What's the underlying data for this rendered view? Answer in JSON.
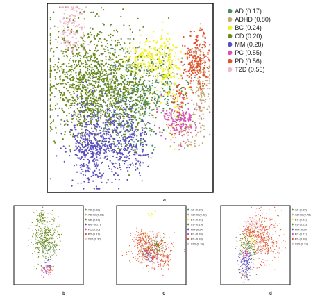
{
  "figure": {
    "main_label": "a",
    "sub_labels": [
      "b",
      "c",
      "d"
    ]
  },
  "chart_data": [
    {
      "type": "scatter",
      "panel": "a",
      "title": "",
      "xlabel": "",
      "ylabel": "",
      "grid": false,
      "legend_position": "right-outside",
      "series": [
        {
          "name": "AD (0.17)",
          "color": "#4d8a5a"
        },
        {
          "name": "ADHD (0.80)",
          "color": "#c8a878"
        },
        {
          "name": "BC (0.24)",
          "color": "#f2f222"
        },
        {
          "name": "CD (0.20)",
          "color": "#6b8a1e"
        },
        {
          "name": "MM (0.28)",
          "color": "#5a4fbf"
        },
        {
          "name": "PC (0.55)",
          "color": "#d94fb8"
        },
        {
          "name": "PD (0.56)",
          "color": "#e0522a"
        },
        {
          "name": "T2D (0.56)",
          "color": "#f0b8c8"
        }
      ]
    },
    {
      "type": "scatter",
      "panel": "b",
      "title": "",
      "xlabel": "",
      "ylabel": "",
      "grid": false,
      "legend_position": "right-outside",
      "series": [
        {
          "name": "AD (0.18)",
          "color": "#4d8a5a"
        },
        {
          "name": "ADHD (0.86)",
          "color": "#c8a878"
        },
        {
          "name": "CD (0.19)",
          "color": "#6b8a1e"
        },
        {
          "name": "MM (0.27)",
          "color": "#5a4fbf"
        },
        {
          "name": "PC (0.20)",
          "color": "#d94fb8"
        },
        {
          "name": "PD (0.17)",
          "color": "#e0522a"
        },
        {
          "name": "T2D (0.30)",
          "color": "#f0b8c8"
        }
      ]
    },
    {
      "type": "scatter",
      "panel": "c",
      "title": "",
      "xlabel": "",
      "ylabel": "",
      "grid": false,
      "legend_position": "right-outside",
      "series": [
        {
          "name": "AD (0.19)",
          "color": "#4d8a5a"
        },
        {
          "name": "ADHD (0.82)",
          "color": "#c8a878"
        },
        {
          "name": "BC (0.26)",
          "color": "#f2f222"
        },
        {
          "name": "CD (0.19)",
          "color": "#6b8a1e"
        },
        {
          "name": "MM (0.24)",
          "color": "#5a4fbf"
        },
        {
          "name": "PC (0.18)",
          "color": "#d94fb8"
        },
        {
          "name": "PD (0.18)",
          "color": "#e0522a"
        },
        {
          "name": "T2D (0.18)",
          "color": "#f0b8c8"
        }
      ]
    },
    {
      "type": "scatter",
      "panel": "d",
      "title": "",
      "xlabel": "",
      "ylabel": "",
      "grid": false,
      "legend_position": "right-outside",
      "series": [
        {
          "name": "AD (0.19)",
          "color": "#4d8a5a"
        },
        {
          "name": "ADHD (0.78)",
          "color": "#c8a878"
        },
        {
          "name": "BC (0.21)",
          "color": "#f2f222"
        },
        {
          "name": "CD (0.22)",
          "color": "#6b8a1e"
        },
        {
          "name": "MM (0.24)",
          "color": "#5a4fbf"
        },
        {
          "name": "PC (0.21)",
          "color": "#d94fb8"
        },
        {
          "name": "PD (0.18)",
          "color": "#e0522a"
        },
        {
          "name": "T2D (0.23)",
          "color": "#f0b8c8"
        }
      ]
    }
  ]
}
